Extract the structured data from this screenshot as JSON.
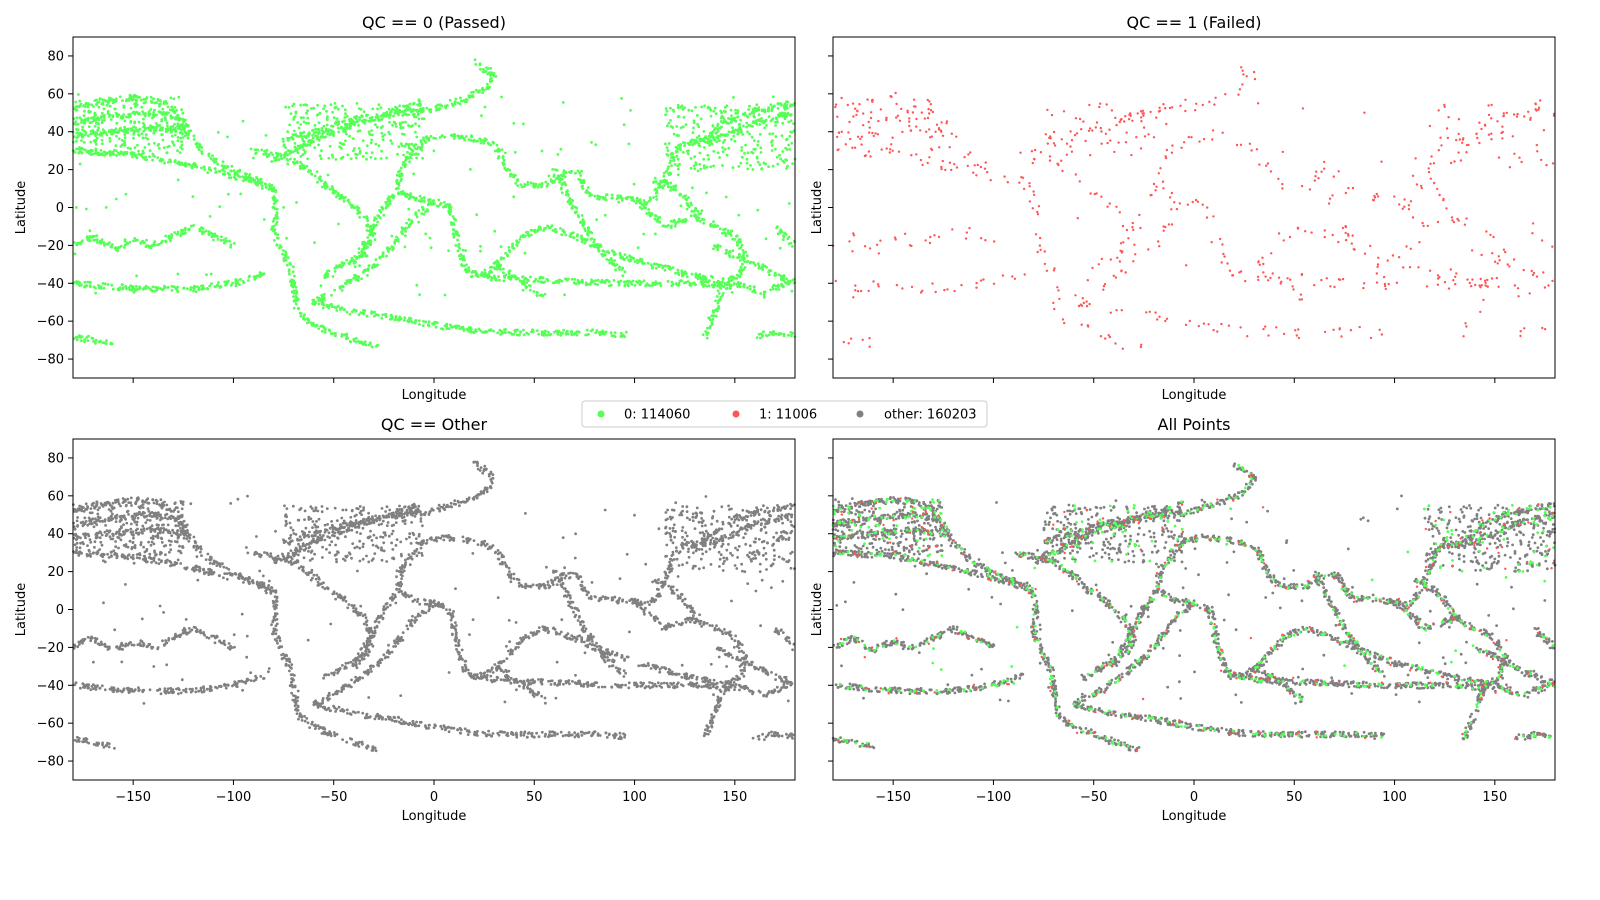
{
  "colors": {
    "passed": "#55ff55",
    "failed": "#ff5555",
    "other": "#808080"
  },
  "legend": {
    "placement": "upper-center",
    "entries": [
      {
        "label": "0: 114060",
        "color": "#55ff55"
      },
      {
        "label": "1: 11006",
        "color": "#ff5555"
      },
      {
        "label": "other: 160203",
        "color": "#808080"
      }
    ]
  },
  "chart_data": [
    {
      "type": "scatter",
      "title": "QC == 0 (Passed)",
      "xlabel": "Longitude",
      "ylabel": "Latitude",
      "xlim": [
        -180,
        180
      ],
      "ylim": [
        -90,
        90
      ],
      "xticks": [
        -150,
        -100,
        -50,
        0,
        50,
        100,
        150
      ],
      "yticks": [
        80,
        60,
        40,
        20,
        0,
        -20,
        -40,
        -60,
        -80
      ],
      "show_xtick_labels": false,
      "show_ytick_labels": true,
      "series": [
        {
          "color": "#55ff55",
          "count": 114060
        }
      ]
    },
    {
      "type": "scatter",
      "title": "QC == 1 (Failed)",
      "xlabel": "Longitude",
      "ylabel": "Latitude",
      "xlim": [
        -180,
        180
      ],
      "ylim": [
        -90,
        90
      ],
      "xticks": [
        -150,
        -100,
        -50,
        0,
        50,
        100,
        150
      ],
      "yticks": [
        80,
        60,
        40,
        20,
        0,
        -20,
        -40,
        -60,
        -80
      ],
      "show_xtick_labels": false,
      "show_ytick_labels": false,
      "series": [
        {
          "color": "#ff5555",
          "count": 11006
        }
      ]
    },
    {
      "type": "scatter",
      "title": "QC == Other",
      "xlabel": "Longitude",
      "ylabel": "Latitude",
      "xlim": [
        -180,
        180
      ],
      "ylim": [
        -90,
        90
      ],
      "xticks": [
        -150,
        -100,
        -50,
        0,
        50,
        100,
        150
      ],
      "yticks": [
        80,
        60,
        40,
        20,
        0,
        -20,
        -40,
        -60,
        -80
      ],
      "show_xtick_labels": true,
      "show_ytick_labels": true,
      "series": [
        {
          "color": "#808080",
          "count": 160203
        }
      ]
    },
    {
      "type": "scatter",
      "title": "All Points",
      "xlabel": "Longitude",
      "ylabel": "Latitude",
      "xlim": [
        -180,
        180
      ],
      "ylim": [
        -90,
        90
      ],
      "xticks": [
        -150,
        -100,
        -50,
        0,
        50,
        100,
        150
      ],
      "yticks": [
        80,
        60,
        40,
        20,
        0,
        -20,
        -40,
        -60,
        -80
      ],
      "show_xtick_labels": true,
      "show_ytick_labels": false,
      "series": [
        {
          "color": "#808080",
          "count": 160203
        },
        {
          "color": "#55ff55",
          "count": 114060
        },
        {
          "color": "#ff5555",
          "count": 11006
        }
      ]
    }
  ],
  "tracks": [
    [
      [
        -180,
        52
      ],
      [
        -165,
        56
      ],
      [
        -150,
        58
      ],
      [
        -140,
        57
      ],
      [
        -130,
        52
      ],
      [
        -125,
        45
      ],
      [
        -120,
        35
      ],
      [
        -110,
        25
      ],
      [
        -95,
        17
      ],
      [
        -85,
        13
      ],
      [
        -80,
        10
      ]
    ],
    [
      [
        -180,
        45
      ],
      [
        -160,
        48
      ],
      [
        -140,
        50
      ],
      [
        -128,
        48
      ],
      [
        -124,
        38
      ]
    ],
    [
      [
        -180,
        38
      ],
      [
        -160,
        40
      ],
      [
        -140,
        42
      ],
      [
        -124,
        40
      ]
    ],
    [
      [
        -180,
        30
      ],
      [
        -150,
        28
      ],
      [
        -120,
        22
      ],
      [
        -90,
        14
      ],
      [
        -80,
        9
      ]
    ],
    [
      [
        -80,
        10
      ],
      [
        -79,
        0
      ],
      [
        -80,
        -10
      ],
      [
        -77,
        -20
      ],
      [
        -72,
        -30
      ],
      [
        -70,
        -42
      ],
      [
        -68,
        -55
      ],
      [
        -63,
        -60
      ],
      [
        -55,
        -64
      ],
      [
        -40,
        -70
      ],
      [
        -28,
        -74
      ]
    ],
    [
      [
        -80,
        25
      ],
      [
        -70,
        30
      ],
      [
        -60,
        36
      ],
      [
        -45,
        42
      ],
      [
        -30,
        47
      ],
      [
        -15,
        50
      ],
      [
        -5,
        51
      ],
      [
        5,
        54
      ],
      [
        15,
        57
      ],
      [
        25,
        62
      ],
      [
        30,
        70
      ],
      [
        20,
        77
      ]
    ],
    [
      [
        -75,
        36
      ],
      [
        -60,
        40
      ],
      [
        -45,
        45
      ],
      [
        -30,
        48
      ],
      [
        -15,
        52
      ],
      [
        -6,
        56
      ]
    ],
    [
      [
        -90,
        30
      ],
      [
        -80,
        28
      ],
      [
        -70,
        25
      ],
      [
        -60,
        18
      ],
      [
        -55,
        12
      ],
      [
        -45,
        5
      ],
      [
        -35,
        -5
      ],
      [
        -30,
        -15
      ],
      [
        -35,
        -25
      ],
      [
        -45,
        -30
      ],
      [
        -55,
        -36
      ]
    ],
    [
      [
        -5,
        36
      ],
      [
        5,
        38
      ],
      [
        15,
        37
      ],
      [
        25,
        35
      ],
      [
        32,
        31
      ],
      [
        34,
        25
      ],
      [
        38,
        18
      ],
      [
        43,
        12
      ],
      [
        55,
        12
      ],
      [
        65,
        18
      ],
      [
        72,
        18
      ],
      [
        75,
        10
      ],
      [
        80,
        6
      ],
      [
        90,
        5
      ],
      [
        100,
        4
      ],
      [
        105,
        2
      ],
      [
        110,
        5
      ],
      [
        115,
        15
      ],
      [
        118,
        22
      ],
      [
        120,
        30
      ],
      [
        125,
        35
      ],
      [
        130,
        34
      ],
      [
        140,
        36
      ],
      [
        150,
        40
      ],
      [
        160,
        45
      ],
      [
        180,
        50
      ]
    ],
    [
      [
        -5,
        36
      ],
      [
        -10,
        30
      ],
      [
        -17,
        20
      ],
      [
        -18,
        10
      ],
      [
        -10,
        5
      ],
      [
        0,
        3
      ],
      [
        8,
        0
      ],
      [
        10,
        -10
      ],
      [
        12,
        -20
      ],
      [
        15,
        -30
      ],
      [
        18,
        -35
      ],
      [
        25,
        -35
      ],
      [
        32,
        -30
      ],
      [
        40,
        -20
      ],
      [
        45,
        -15
      ],
      [
        55,
        -10
      ],
      [
        70,
        -15
      ],
      [
        80,
        -20
      ],
      [
        100,
        -28
      ],
      [
        115,
        -32
      ],
      [
        125,
        -35
      ],
      [
        140,
        -38
      ],
      [
        150,
        -40
      ],
      [
        165,
        -45
      ],
      [
        180,
        -38
      ]
    ],
    [
      [
        -18,
        10
      ],
      [
        -25,
        0
      ],
      [
        -30,
        -10
      ],
      [
        -35,
        -20
      ],
      [
        -40,
        -30
      ]
    ],
    [
      [
        18,
        -35
      ],
      [
        30,
        -37
      ],
      [
        50,
        -38
      ],
      [
        70,
        -39
      ],
      [
        90,
        -40
      ],
      [
        110,
        -40
      ],
      [
        130,
        -40
      ],
      [
        150,
        -42
      ]
    ],
    [
      [
        100,
        5
      ],
      [
        110,
        -5
      ],
      [
        115,
        -10
      ],
      [
        120,
        -8
      ],
      [
        130,
        -5
      ],
      [
        140,
        -10
      ],
      [
        150,
        -15
      ],
      [
        155,
        -25
      ],
      [
        153,
        -35
      ],
      [
        145,
        -40
      ],
      [
        140,
        -55
      ],
      [
        135,
        -68
      ]
    ],
    [
      [
        110,
        15
      ],
      [
        120,
        10
      ],
      [
        125,
        5
      ],
      [
        128,
        0
      ],
      [
        132,
        -5
      ]
    ],
    [
      [
        130,
        34
      ],
      [
        140,
        40
      ],
      [
        145,
        45
      ],
      [
        155,
        50
      ],
      [
        170,
        53
      ],
      [
        180,
        55
      ]
    ],
    [
      [
        0,
        3
      ],
      [
        -10,
        -5
      ],
      [
        -20,
        -20
      ],
      [
        -30,
        -30
      ],
      [
        -40,
        -38
      ],
      [
        -50,
        -45
      ],
      [
        -60,
        -50
      ]
    ],
    [
      [
        30,
        -30
      ],
      [
        45,
        -40
      ],
      [
        55,
        -48
      ]
    ],
    [
      [
        60,
        20
      ],
      [
        65,
        10
      ],
      [
        70,
        0
      ],
      [
        75,
        -10
      ],
      [
        85,
        -25
      ],
      [
        95,
        -35
      ]
    ],
    [
      [
        -60,
        -50
      ],
      [
        -40,
        -55
      ],
      [
        -20,
        -58
      ],
      [
        0,
        -62
      ],
      [
        20,
        -65
      ],
      [
        40,
        -66
      ],
      [
        60,
        -66
      ],
      [
        80,
        -66
      ],
      [
        95,
        -67
      ]
    ],
    [
      [
        -180,
        -68
      ],
      [
        -170,
        -70
      ],
      [
        -160,
        -72
      ]
    ],
    [
      [
        160,
        -68
      ],
      [
        170,
        -66
      ],
      [
        180,
        -67
      ]
    ],
    [
      [
        -100,
        -20
      ],
      [
        -110,
        -15
      ],
      [
        -120,
        -10
      ],
      [
        -140,
        -20
      ],
      [
        -150,
        -17
      ],
      [
        -160,
        -22
      ],
      [
        -170,
        -15
      ],
      [
        -180,
        -20
      ]
    ],
    [
      [
        -180,
        -40
      ],
      [
        -160,
        -42
      ],
      [
        -140,
        -43
      ],
      [
        -120,
        -43
      ],
      [
        -100,
        -40
      ],
      [
        -85,
        -35
      ]
    ],
    [
      [
        170,
        -10
      ],
      [
        175,
        -15
      ],
      [
        180,
        -20
      ]
    ],
    [
      [
        140,
        -20
      ],
      [
        150,
        -25
      ],
      [
        160,
        -30
      ],
      [
        170,
        -35
      ],
      [
        180,
        -40
      ]
    ]
  ]
}
